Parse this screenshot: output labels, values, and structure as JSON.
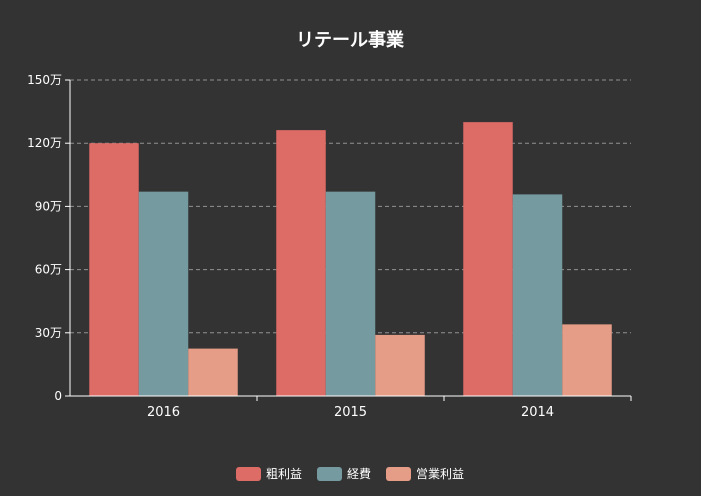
{
  "chart_data": {
    "type": "bar",
    "title": "リテール事業",
    "categories": [
      "2016",
      "2015",
      "2014"
    ],
    "series": [
      {
        "name": "粗利益",
        "color": "#dd6b66",
        "values": [
          1200000,
          1262000,
          1300000
        ]
      },
      {
        "name": "経費",
        "color": "#759aa0",
        "values": [
          970000,
          970000,
          957000
        ]
      },
      {
        "name": "営業利益",
        "color": "#e69d87",
        "values": [
          225000,
          290000,
          340000
        ]
      }
    ],
    "ylim": [
      0,
      1500000
    ],
    "yticks": [
      0,
      300000,
      600000,
      900000,
      1200000,
      1500000
    ],
    "ytick_labels": [
      "0",
      "30万",
      "60万",
      "90万",
      "120万",
      "150万"
    ],
    "xlabel": "",
    "ylabel": "",
    "grid": true,
    "legend_position": "bottom",
    "colors": {
      "background": "#333333",
      "text": "#ffffff",
      "axis": "#ffffff",
      "grid": "#bbbbbb"
    }
  }
}
